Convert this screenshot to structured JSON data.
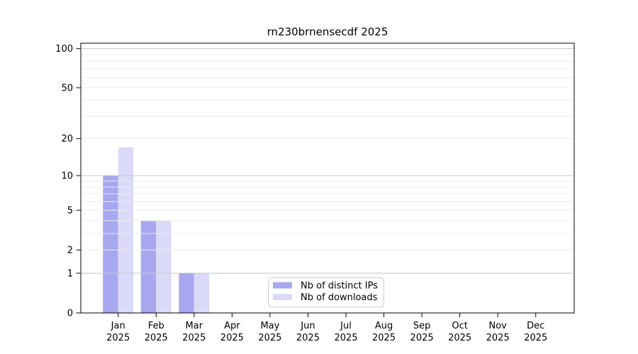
{
  "title": "rn230brnensecdf 2025",
  "chart_data": {
    "type": "bar",
    "title": "rn230brnensecdf 2025",
    "categories": [
      "Jan 2025",
      "Feb 2025",
      "Mar 2025",
      "Apr 2025",
      "May 2025",
      "Jun 2025",
      "Jul 2025",
      "Aug 2025",
      "Sep 2025",
      "Oct 2025",
      "Nov 2025",
      "Dec 2025"
    ],
    "series": [
      {
        "name": "Nb of distinct IPs",
        "color": "#a8a8f0",
        "values": [
          10,
          4,
          1,
          0,
          0,
          0,
          0,
          0,
          0,
          0,
          0,
          0
        ]
      },
      {
        "name": "Nb of downloads",
        "color": "#dadaf8",
        "values": [
          17,
          4,
          1,
          0,
          0,
          0,
          0,
          0,
          0,
          0,
          0,
          0
        ]
      }
    ],
    "xlabel": "",
    "ylabel": "",
    "yscale": "log1p",
    "yticks": [
      0,
      1,
      2,
      5,
      10,
      20,
      50,
      100
    ],
    "ylim": [
      0,
      110
    ],
    "grid": true,
    "grid_minor_color": "#ebebeb",
    "grid_major_color": "#c8c8c8",
    "grid_major_values": [
      1,
      10,
      100
    ],
    "axis_color": "#000000",
    "legend_position": "bottom-center"
  }
}
